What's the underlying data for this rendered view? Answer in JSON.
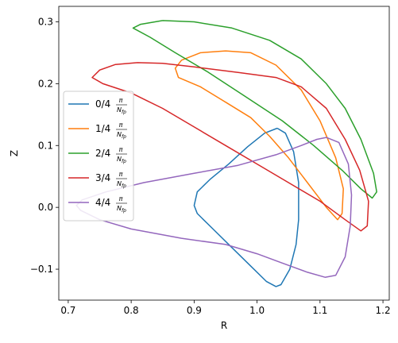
{
  "chart_data": {
    "type": "line",
    "xlabel": "R",
    "ylabel": "Z",
    "xlim": [
      0.685,
      1.21
    ],
    "ylim": [
      -0.15,
      0.325
    ],
    "xticks": [
      "0.7",
      "0.8",
      "0.9",
      "1.0",
      "1.1",
      "1.2"
    ],
    "xtick_values": [
      0.7,
      0.8,
      0.9,
      1.0,
      1.1,
      1.2
    ],
    "yticks": [
      "−0.1",
      "0.0",
      "0.1",
      "0.2",
      "0.3"
    ],
    "ytick_values": [
      -0.1,
      0.0,
      0.1,
      0.2,
      0.3
    ],
    "grid": false,
    "legend_position": "center-left",
    "series": [
      {
        "name": "0/4 π/N_fp",
        "label_prefix": "0/4",
        "label_frac_num": "π",
        "label_frac_den": "N",
        "label_frac_sub": "fp",
        "color": "#1f77b4",
        "points": [
          [
            1.032,
            0.128
          ],
          [
            1.045,
            0.12
          ],
          [
            1.058,
            0.09
          ],
          [
            1.066,
            0.04
          ],
          [
            1.066,
            -0.02
          ],
          [
            1.062,
            -0.06
          ],
          [
            1.052,
            -0.1
          ],
          [
            1.038,
            -0.125
          ],
          [
            1.03,
            -0.128
          ],
          [
            1.015,
            -0.12
          ],
          [
            0.99,
            -0.095
          ],
          [
            0.96,
            -0.065
          ],
          [
            0.93,
            -0.035
          ],
          [
            0.905,
            -0.01
          ],
          [
            0.9,
            0.003
          ],
          [
            0.905,
            0.025
          ],
          [
            0.925,
            0.045
          ],
          [
            0.955,
            0.07
          ],
          [
            0.985,
            0.098
          ],
          [
            1.012,
            0.12
          ],
          [
            1.032,
            0.128
          ]
        ]
      },
      {
        "name": "1/4 π/N_fp",
        "label_prefix": "1/4",
        "label_frac_num": "π",
        "label_frac_den": "N",
        "label_frac_sub": "fp",
        "color": "#ff7f0e",
        "points": [
          [
            0.95,
            0.253
          ],
          [
            0.99,
            0.25
          ],
          [
            1.03,
            0.23
          ],
          [
            1.07,
            0.19
          ],
          [
            1.1,
            0.14
          ],
          [
            1.125,
            0.08
          ],
          [
            1.137,
            0.03
          ],
          [
            1.135,
            -0.01
          ],
          [
            1.128,
            -0.02
          ],
          [
            1.11,
            0.0
          ],
          [
            1.08,
            0.04
          ],
          [
            1.05,
            0.08
          ],
          [
            1.02,
            0.115
          ],
          [
            0.99,
            0.145
          ],
          [
            0.95,
            0.17
          ],
          [
            0.91,
            0.195
          ],
          [
            0.875,
            0.21
          ],
          [
            0.87,
            0.225
          ],
          [
            0.88,
            0.238
          ],
          [
            0.91,
            0.25
          ],
          [
            0.95,
            0.253
          ]
        ]
      },
      {
        "name": "2/4 π/N_fp",
        "label_prefix": "2/4",
        "label_frac_num": "π",
        "label_frac_den": "N",
        "label_frac_sub": "fp",
        "color": "#2ca02c",
        "points": [
          [
            0.85,
            0.302
          ],
          [
            0.9,
            0.3
          ],
          [
            0.96,
            0.29
          ],
          [
            1.02,
            0.27
          ],
          [
            1.07,
            0.24
          ],
          [
            1.11,
            0.2
          ],
          [
            1.14,
            0.16
          ],
          [
            1.165,
            0.11
          ],
          [
            1.185,
            0.055
          ],
          [
            1.19,
            0.025
          ],
          [
            1.183,
            0.015
          ],
          [
            1.165,
            0.03
          ],
          [
            1.135,
            0.06
          ],
          [
            1.09,
            0.1
          ],
          [
            1.04,
            0.14
          ],
          [
            0.98,
            0.18
          ],
          [
            0.92,
            0.22
          ],
          [
            0.87,
            0.25
          ],
          [
            0.83,
            0.275
          ],
          [
            0.803,
            0.29
          ],
          [
            0.815,
            0.296
          ],
          [
            0.85,
            0.302
          ]
        ]
      },
      {
        "name": "3/4 π/N_fp",
        "label_prefix": "3/4",
        "label_frac_num": "π",
        "label_frac_den": "N",
        "label_frac_sub": "fp",
        "color": "#d62728",
        "points": [
          [
            0.81,
            0.234
          ],
          [
            0.85,
            0.233
          ],
          [
            0.9,
            0.227
          ],
          [
            0.97,
            0.218
          ],
          [
            1.03,
            0.21
          ],
          [
            1.07,
            0.195
          ],
          [
            1.11,
            0.16
          ],
          [
            1.14,
            0.11
          ],
          [
            1.163,
            0.06
          ],
          [
            1.177,
            0.01
          ],
          [
            1.175,
            -0.03
          ],
          [
            1.165,
            -0.038
          ],
          [
            1.14,
            -0.02
          ],
          [
            1.1,
            0.01
          ],
          [
            1.05,
            0.04
          ],
          [
            1.0,
            0.07
          ],
          [
            0.95,
            0.1
          ],
          [
            0.9,
            0.13
          ],
          [
            0.85,
            0.16
          ],
          [
            0.8,
            0.185
          ],
          [
            0.755,
            0.2
          ],
          [
            0.738,
            0.21
          ],
          [
            0.75,
            0.222
          ],
          [
            0.775,
            0.231
          ],
          [
            0.81,
            0.234
          ]
        ]
      },
      {
        "name": "4/4 π/N_fp",
        "label_prefix": "4/4",
        "label_frac_num": "π",
        "label_frac_den": "N",
        "label_frac_sub": "fp",
        "color": "#9467bd",
        "points": [
          [
            1.11,
            0.113
          ],
          [
            1.13,
            0.105
          ],
          [
            1.145,
            0.07
          ],
          [
            1.15,
            0.02
          ],
          [
            1.148,
            -0.03
          ],
          [
            1.14,
            -0.08
          ],
          [
            1.125,
            -0.11
          ],
          [
            1.108,
            -0.113
          ],
          [
            1.08,
            -0.105
          ],
          [
            1.04,
            -0.09
          ],
          [
            1.0,
            -0.075
          ],
          [
            0.95,
            -0.06
          ],
          [
            0.88,
            -0.05
          ],
          [
            0.8,
            -0.035
          ],
          [
            0.75,
            -0.02
          ],
          [
            0.72,
            -0.005
          ],
          [
            0.713,
            0.003
          ],
          [
            0.722,
            0.012
          ],
          [
            0.76,
            0.025
          ],
          [
            0.82,
            0.04
          ],
          [
            0.9,
            0.055
          ],
          [
            0.97,
            0.068
          ],
          [
            1.03,
            0.085
          ],
          [
            1.07,
            0.1
          ],
          [
            1.095,
            0.11
          ],
          [
            1.11,
            0.113
          ]
        ]
      }
    ]
  }
}
